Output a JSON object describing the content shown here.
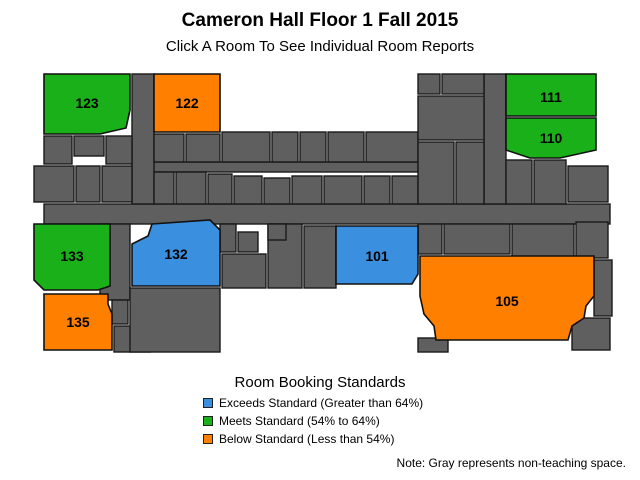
{
  "title": "Cameron Hall Floor 1 Fall 2015",
  "subtitle": "Click A Room To See Individual Room Reports",
  "colors": {
    "exceeds": "#3a8fde",
    "meets": "#1ab01a",
    "below": "#ff8000",
    "non_teaching": "#5f5f5f"
  },
  "rooms": [
    {
      "id": "123",
      "label": "123",
      "status": "meets"
    },
    {
      "id": "122",
      "label": "122",
      "status": "below"
    },
    {
      "id": "111",
      "label": "111",
      "status": "meets"
    },
    {
      "id": "110",
      "label": "110",
      "status": "meets"
    },
    {
      "id": "133",
      "label": "133",
      "status": "meets"
    },
    {
      "id": "132",
      "label": "132",
      "status": "exceeds"
    },
    {
      "id": "101",
      "label": "101",
      "status": "exceeds"
    },
    {
      "id": "135",
      "label": "135",
      "status": "below"
    },
    {
      "id": "105",
      "label": "105",
      "status": "below"
    }
  ],
  "legend": {
    "title": "Room Booking Standards",
    "items": [
      {
        "label": "Exceeds Standard (Greater than 64%)",
        "status": "exceeds"
      },
      {
        "label": "Meets Standard (54% to 64%)",
        "status": "meets"
      },
      {
        "label": "Below Standard (Less than 54%)",
        "status": "below"
      }
    ]
  },
  "note": "Note: Gray represents non-teaching space."
}
